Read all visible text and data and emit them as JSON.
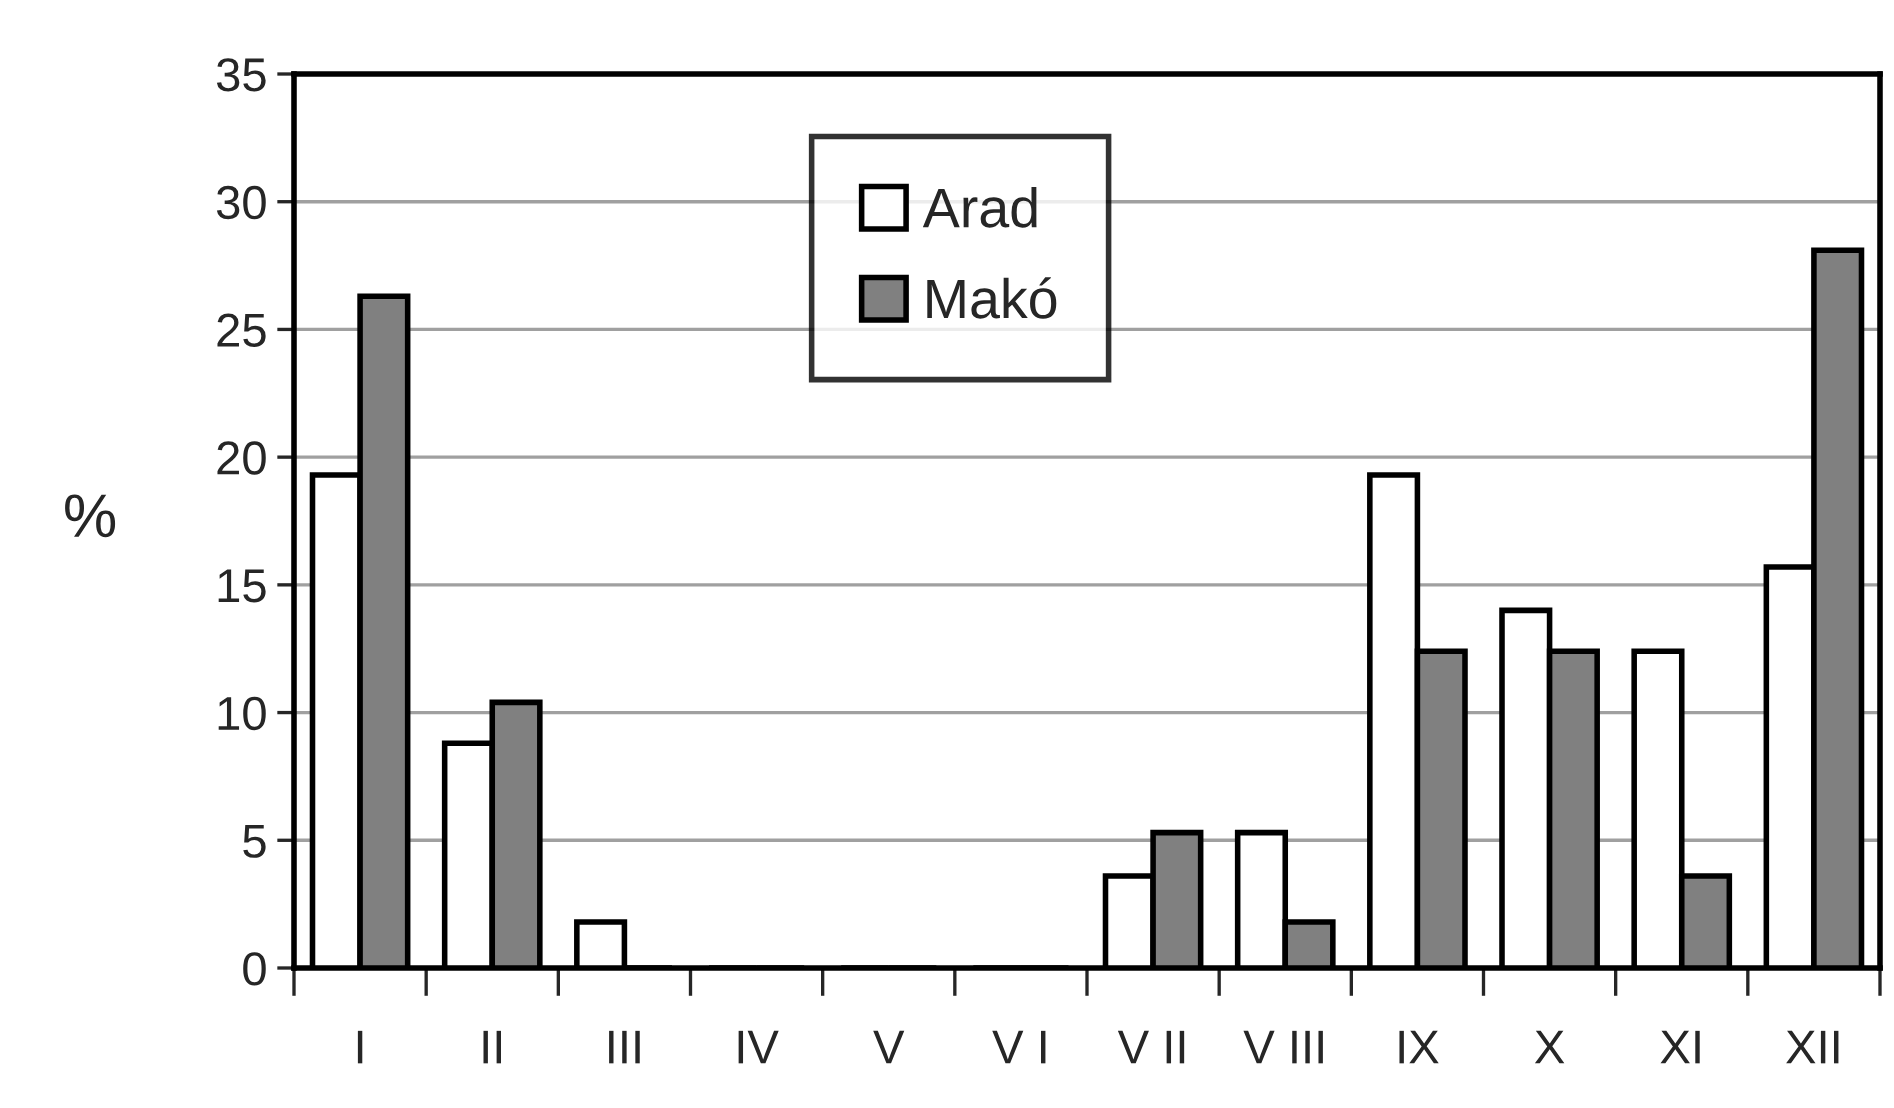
{
  "chart_data": {
    "type": "bar",
    "ylabel": "%",
    "categories": [
      "I",
      "II",
      "III",
      "IV",
      "V",
      "V I",
      "V II",
      "V III",
      "IX",
      "X",
      "XI",
      "XII"
    ],
    "series": [
      {
        "name": "Arad",
        "color": "#ffffff",
        "values": [
          19.3,
          8.8,
          1.8,
          0,
          0,
          0,
          3.6,
          5.3,
          19.3,
          14.0,
          12.4,
          15.7
        ]
      },
      {
        "name": "Makó",
        "color": "#808080",
        "values": [
          26.3,
          10.4,
          0,
          0,
          0,
          0,
          5.3,
          1.8,
          12.4,
          12.4,
          3.6,
          28.1
        ]
      }
    ],
    "ylim": [
      0,
      35
    ],
    "yticks": [
      0,
      5,
      10,
      15,
      20,
      25,
      30,
      35
    ],
    "grid": "y",
    "legend": "top"
  }
}
